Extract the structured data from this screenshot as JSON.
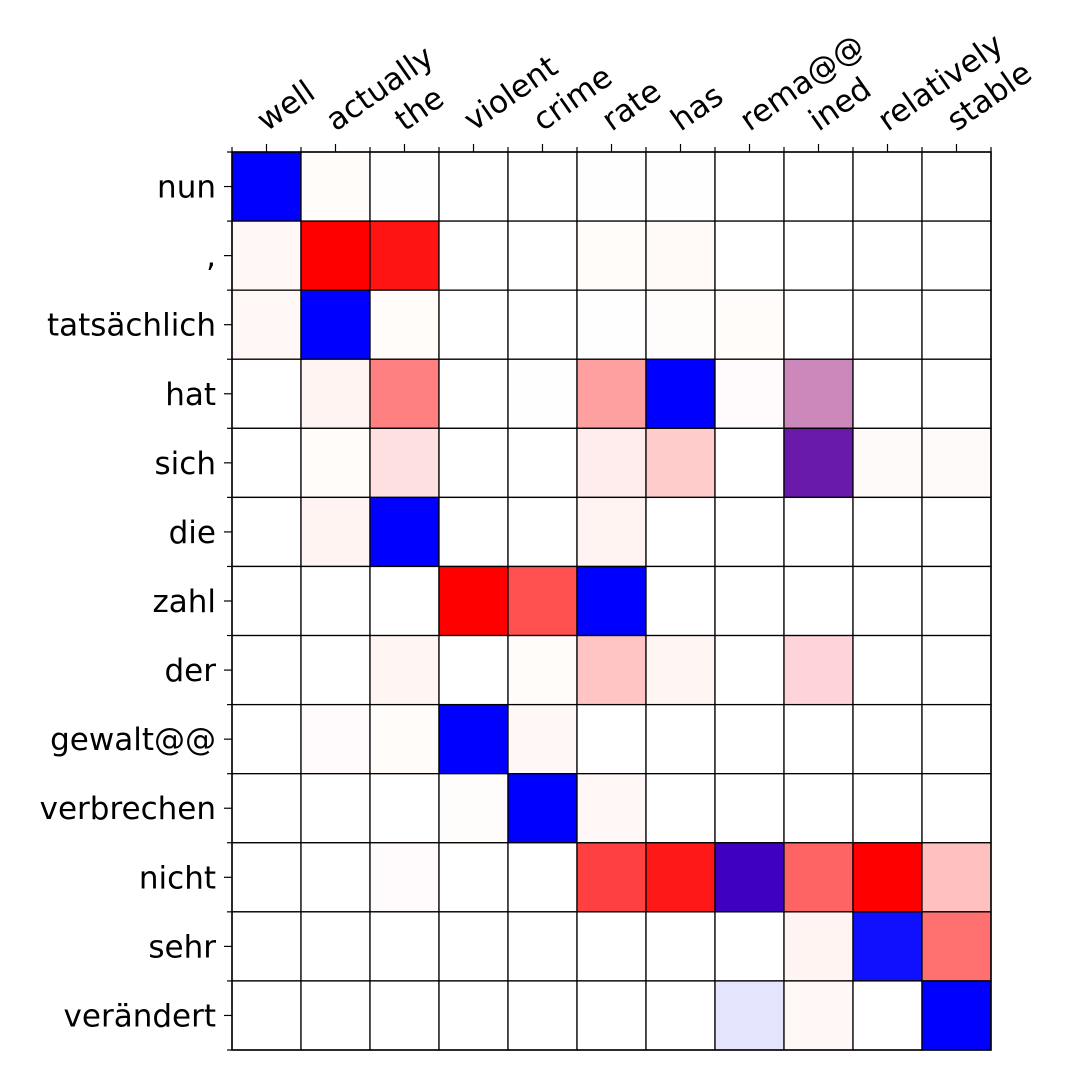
{
  "chart_data": {
    "type": "heatmap",
    "title": "",
    "xlabel": "",
    "ylabel": "",
    "grid": true,
    "x_labels": [
      "well",
      "actually",
      "the",
      "violent",
      "crime",
      "rate",
      "has",
      "rema@@",
      "ined",
      "relatively",
      "stable"
    ],
    "y_labels": [
      "nun",
      ",",
      "tatsächlich",
      "hat",
      "sich",
      "die",
      "zahl",
      "der",
      "gewalt@@",
      "verbrechen",
      "nicht",
      "sehr",
      "verändert"
    ],
    "cell_colors": [
      [
        "#0000ff",
        "#fffcfa",
        "#fffefe",
        "#ffffff",
        "#ffffff",
        "#fffefe",
        "#fffefe",
        "#ffffff",
        "#ffffff",
        "#ffffff",
        "#ffffff"
      ],
      [
        "#fff8f7",
        "#ff0000",
        "#ff1414",
        "#ffffff",
        "#ffffff",
        "#fffcfa",
        "#fffaf8",
        "#ffffff",
        "#ffffff",
        "#ffffff",
        "#ffffff"
      ],
      [
        "#fff8f7",
        "#0000ff",
        "#fffcfa",
        "#ffffff",
        "#ffffff",
        "#fffefe",
        "#fffcfc",
        "#fffcfa",
        "#ffffff",
        "#ffffff",
        "#ffffff"
      ],
      [
        "#ffffff",
        "#fff4f2",
        "#ff8080",
        "#ffffff",
        "#fffefe",
        "#ffa0a0",
        "#0000ff",
        "#fffafc",
        "#cc88bb",
        "#ffffff",
        "#ffffff"
      ],
      [
        "#ffffff",
        "#fffcfa",
        "#ffe0e0",
        "#ffffff",
        "#ffffff",
        "#ffecec",
        "#ffcccc",
        "#ffffff",
        "#6a1aaa",
        "#fffafa",
        "#fffafa"
      ],
      [
        "#ffffff",
        "#fff4f2",
        "#0000ff",
        "#ffffff",
        "#ffffff",
        "#fff4f2",
        "#ffffff",
        "#ffffff",
        "#ffffff",
        "#ffffff",
        "#ffffff"
      ],
      [
        "#ffffff",
        "#ffffff",
        "#ffffff",
        "#ff0000",
        "#ff5050",
        "#0000ff",
        "#ffffff",
        "#ffffff",
        "#ffffff",
        "#ffffff",
        "#ffffff"
      ],
      [
        "#ffffff",
        "#ffffff",
        "#fff6f4",
        "#ffffff",
        "#fffcfa",
        "#ffc4c4",
        "#fff6f4",
        "#ffffff",
        "#ffd4d8",
        "#ffffff",
        "#ffffff"
      ],
      [
        "#ffffff",
        "#fffafc",
        "#fffcfa",
        "#0000ff",
        "#fff8f7",
        "#ffffff",
        "#ffffff",
        "#ffffff",
        "#ffffff",
        "#ffffff",
        "#ffffff"
      ],
      [
        "#ffffff",
        "#ffffff",
        "#ffffff",
        "#fffcfc",
        "#0000ff",
        "#fff8f7",
        "#ffffff",
        "#ffffff",
        "#ffffff",
        "#ffffff",
        "#ffffff"
      ],
      [
        "#ffffff",
        "#ffffff",
        "#fffafc",
        "#ffffff",
        "#ffffff",
        "#ff4040",
        "#ff1818",
        "#4000c0",
        "#ff6464",
        "#ff0000",
        "#ffc0c0"
      ],
      [
        "#ffffff",
        "#ffffff",
        "#ffffff",
        "#ffffff",
        "#ffffff",
        "#ffffff",
        "#ffffff",
        "#ffffff",
        "#fff4f2",
        "#1010ff",
        "#ff7070"
      ],
      [
        "#ffffff",
        "#ffffff",
        "#ffffff",
        "#ffffff",
        "#ffffff",
        "#ffffff",
        "#ffffff",
        "#e4e4fc",
        "#fff8f6",
        "#ffffff",
        "#0000ff"
      ]
    ]
  }
}
